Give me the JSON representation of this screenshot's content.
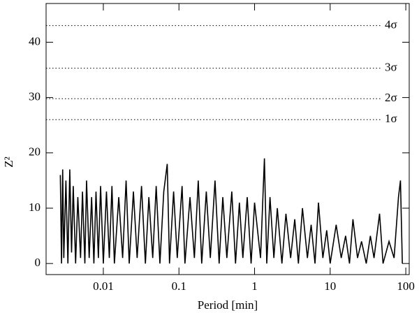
{
  "chart_data": {
    "type": "line",
    "xlabel": "Period [min]",
    "ylabel": "Z²",
    "xscale": "log",
    "xlim": [
      0.00175,
      111
    ],
    "ylim": [
      -2,
      47
    ],
    "xticks": [
      0.01,
      0.1,
      1,
      10,
      100
    ],
    "yticks": [
      0,
      10,
      20,
      30,
      40
    ],
    "series": [
      {
        "color": "#000000",
        "x": [
          0.0027,
          0.0028,
          0.0029,
          0.003,
          0.0032,
          0.0034,
          0.0036,
          0.0038,
          0.004,
          0.0043,
          0.0046,
          0.005,
          0.0053,
          0.0057,
          0.006,
          0.0065,
          0.007,
          0.0075,
          0.008,
          0.0086,
          0.0092,
          0.01,
          0.011,
          0.012,
          0.013,
          0.014,
          0.016,
          0.018,
          0.02,
          0.022,
          0.025,
          0.028,
          0.032,
          0.036,
          0.04,
          0.045,
          0.05,
          0.056,
          0.063,
          0.07,
          0.075,
          0.085,
          0.095,
          0.11,
          0.12,
          0.14,
          0.16,
          0.18,
          0.2,
          0.23,
          0.26,
          0.3,
          0.34,
          0.38,
          0.43,
          0.5,
          0.56,
          0.63,
          0.7,
          0.8,
          0.9,
          1.0,
          1.2,
          1.35,
          1.45,
          1.6,
          1.8,
          2.0,
          2.3,
          2.6,
          3.0,
          3.4,
          3.8,
          4.3,
          5,
          5.6,
          6.3,
          7,
          8,
          9,
          10,
          12,
          14,
          16,
          18,
          20,
          23,
          26,
          30,
          34,
          38,
          45,
          50,
          60,
          70,
          80,
          85,
          90
        ],
        "values": [
          16,
          0,
          17,
          1,
          15,
          0,
          17,
          2,
          14,
          0,
          12,
          1,
          13,
          0,
          15,
          1,
          12,
          0,
          13,
          1,
          14,
          0,
          13,
          1,
          14,
          0,
          12,
          1,
          15,
          0,
          13,
          1,
          14,
          0,
          12,
          1,
          14,
          0,
          13,
          18,
          0,
          13,
          1,
          14,
          0,
          12,
          1,
          15,
          0,
          13,
          1,
          15,
          0,
          12,
          1,
          13,
          0,
          11,
          1,
          12,
          0,
          11,
          1,
          19,
          0,
          12,
          1,
          10,
          0,
          9,
          1,
          8,
          0,
          10,
          1,
          7,
          0,
          11,
          1,
          6,
          0,
          7,
          1,
          5,
          0,
          8,
          1,
          4,
          0,
          5,
          1,
          9,
          0,
          4,
          1,
          12,
          15,
          0
        ]
      }
    ],
    "annotations": [
      {
        "text": "1σ",
        "y": 26.0
      },
      {
        "text": "2σ",
        "y": 29.8
      },
      {
        "text": "3σ",
        "y": 35.3
      },
      {
        "text": "4σ",
        "y": 43.0
      }
    ]
  }
}
